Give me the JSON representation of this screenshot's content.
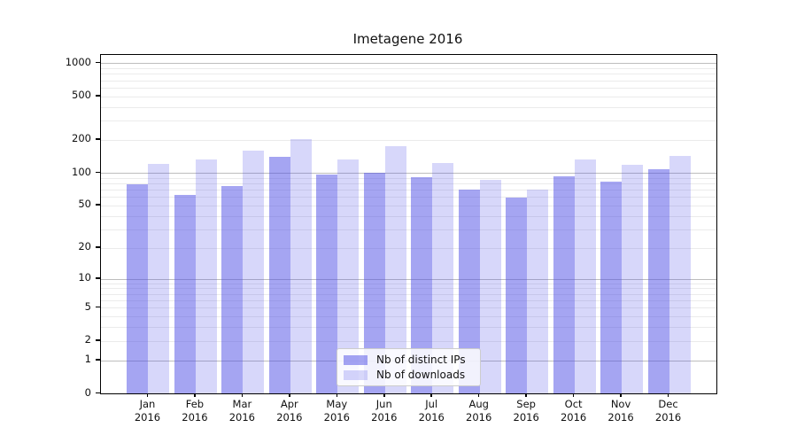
{
  "title": "Imetagene 2016",
  "chart_data": {
    "type": "bar",
    "title": "Imetagene 2016",
    "categories": [
      "Jan 2016",
      "Feb 2016",
      "Mar 2016",
      "Apr 2016",
      "May 2016",
      "Jun 2016",
      "Jul 2016",
      "Aug 2016",
      "Sep 2016",
      "Oct 2016",
      "Nov 2016",
      "Dec 2016"
    ],
    "series": [
      {
        "name": "Nb of distinct IPs",
        "composited_color": "#a5a5f2",
        "base_color_rgb": [
          75,
          75,
          230
        ],
        "alpha": 0.5,
        "values": [
          78,
          63,
          75,
          140,
          97,
          100,
          92,
          70,
          59,
          93,
          83,
          107
        ]
      },
      {
        "name": "Nb of downloads",
        "composited_color": "#d7d7f9",
        "base_color_rgb": [
          75,
          75,
          230
        ],
        "alpha": 0.22,
        "values": [
          120,
          133,
          160,
          205,
          132,
          175,
          122,
          86,
          70,
          133,
          118,
          144
        ]
      }
    ],
    "xlabel": "",
    "ylabel": "",
    "yscale": "log1p",
    "ylim": [
      0,
      1190
    ],
    "yticks": [
      0,
      1,
      2,
      5,
      10,
      20,
      50,
      100,
      200,
      500,
      1000
    ],
    "major_gridline_values": [
      1,
      10,
      100,
      1000
    ],
    "minor_gridlines": "2-9 per decade, light gray, drawn behind translucent bars",
    "grid": "on",
    "legend_position": "lower center",
    "legend_entries": [
      "Nb of distinct IPs",
      "Nb of downloads"
    ],
    "colors": {
      "grid_major": "#bdbdbd",
      "grid_minor": "#ebebeb",
      "axis_frame": "#000000",
      "text": "#111111",
      "background": "#ffffff"
    }
  }
}
